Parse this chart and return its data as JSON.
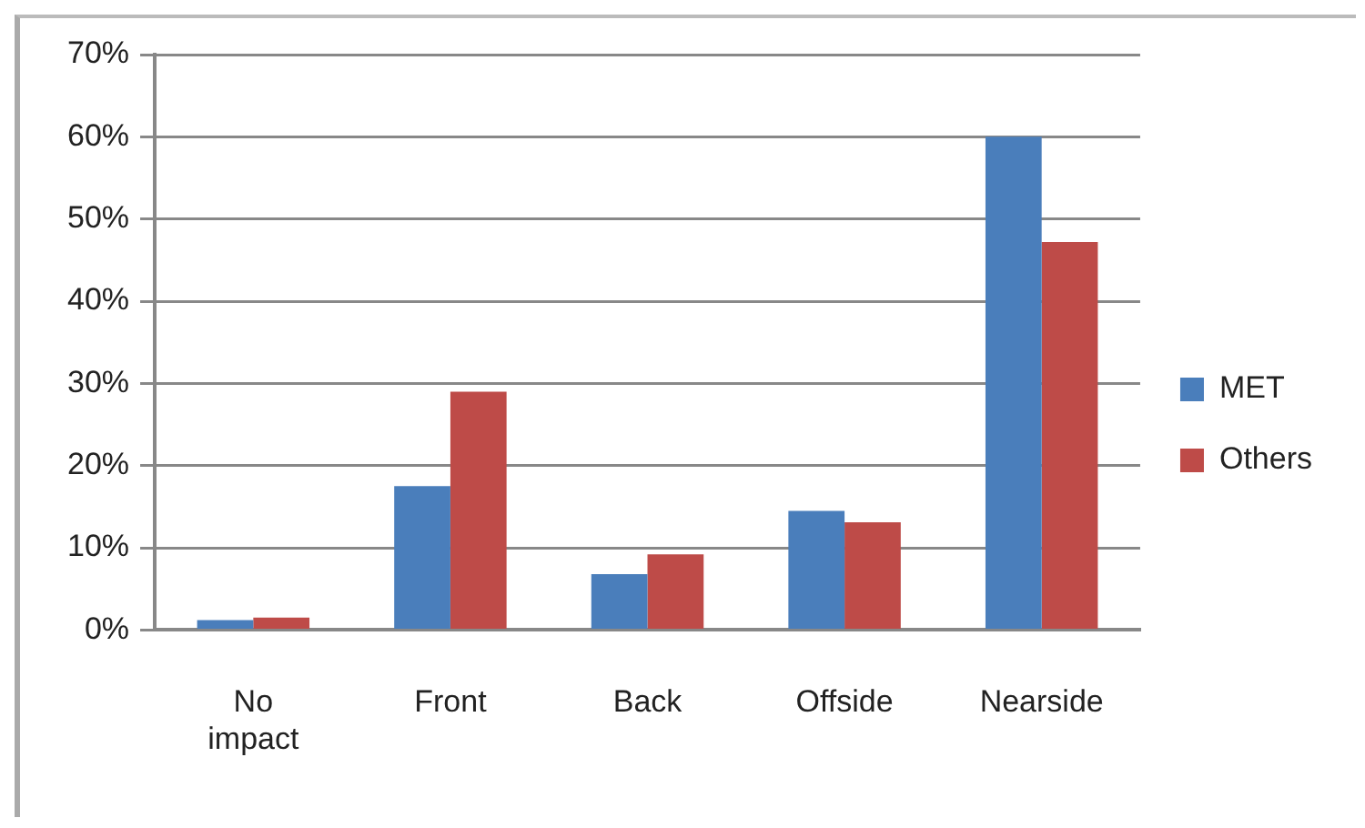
{
  "chart_data": {
    "type": "bar",
    "categories": [
      "No impact",
      "Front",
      "Back",
      "Offside",
      "Nearside"
    ],
    "series": [
      {
        "name": "MET",
        "color": "#4a7ebb",
        "values": [
          1.2,
          17.5,
          6.8,
          14.5,
          60
        ]
      },
      {
        "name": "Others",
        "color": "#be4b48",
        "values": [
          1.5,
          29,
          9.2,
          13.1,
          47.2
        ]
      }
    ],
    "ylim": [
      0,
      70
    ],
    "yticks": [
      {
        "value": 0,
        "label": "0%"
      },
      {
        "value": 10,
        "label": "10%"
      },
      {
        "value": 20,
        "label": "20%"
      },
      {
        "value": 30,
        "label": "30%"
      },
      {
        "value": 40,
        "label": "40%"
      },
      {
        "value": 50,
        "label": "50%"
      },
      {
        "value": 60,
        "label": "60%"
      },
      {
        "value": 70,
        "label": "70%"
      }
    ],
    "grid": "y",
    "legend": "right"
  }
}
